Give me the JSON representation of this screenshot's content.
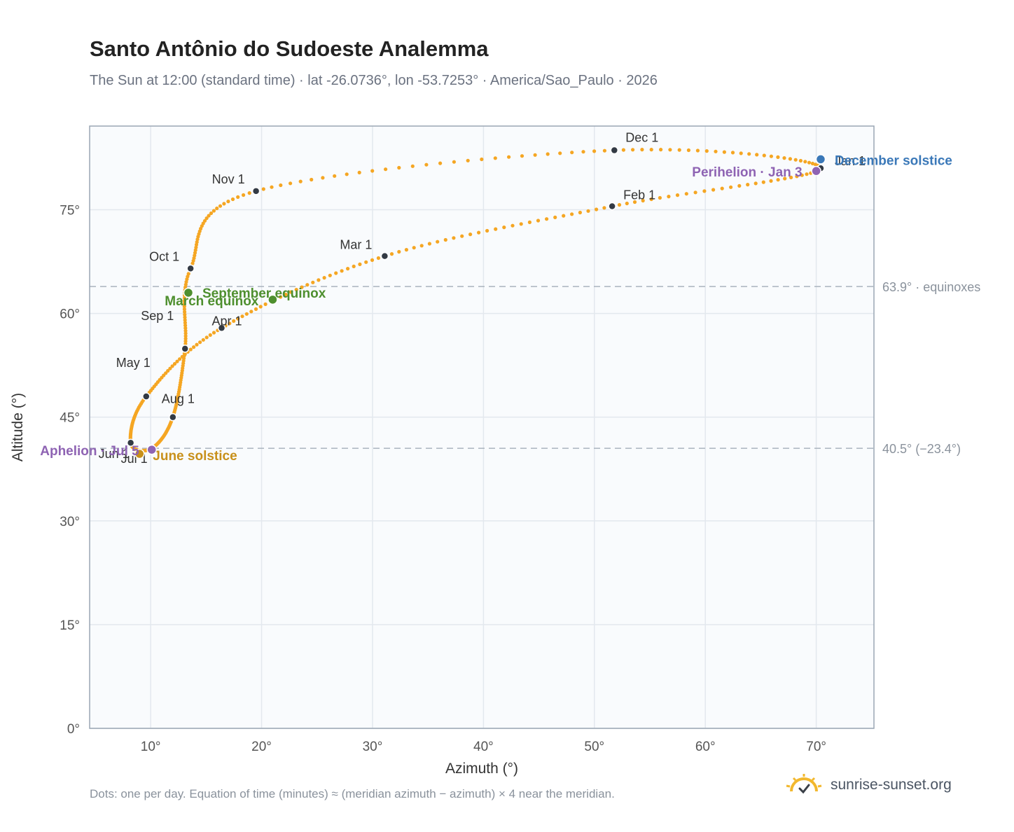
{
  "header": {
    "title": "Santo Antônio do Sudoeste Analemma",
    "subtitle": "The Sun at 12:00 (standard time) · lat -26.0736°, lon -53.7253° · America/Sao_Paulo · 2026"
  },
  "footer": {
    "note": "Dots: one per day. Equation of time (minutes) ≈ (meridian azimuth − azimuth) × 4 near the meridian.",
    "brand": "sunrise-sunset.org"
  },
  "colors": {
    "path": "#f5a623",
    "month_marker": "#333a44",
    "equinox": "#4e8f2e",
    "june_solstice": "#c8901a",
    "december_solstice": "#3a78b8",
    "apsis": "#8e63b3",
    "plot_bg": "#f9fbfd",
    "grid": "#e3e8ee",
    "reference_line": "#aab4be"
  },
  "chart_data": {
    "type": "scatter",
    "xlabel": "Azimuth (°)",
    "ylabel": "Altitude (°)",
    "xlim": [
      4.5,
      75.2
    ],
    "ylim": [
      0,
      87.1
    ],
    "x_ticks": [
      10,
      20,
      30,
      40,
      50,
      60,
      70
    ],
    "x_tick_labels": [
      "10°",
      "20°",
      "30°",
      "40°",
      "50°",
      "60°",
      "70°"
    ],
    "y_ticks": [
      0,
      15,
      30,
      45,
      60,
      75
    ],
    "y_tick_labels": [
      "0°",
      "15°",
      "30°",
      "45°",
      "60°",
      "75°"
    ],
    "grid": true,
    "reference_lines": [
      {
        "y": 63.9,
        "label": "63.9° · equinoxes"
      },
      {
        "y": 40.5,
        "label": "40.5° (−23.4°)"
      }
    ],
    "month_markers": [
      {
        "label": "Jan 1",
        "azimuth": 70.4,
        "altitude": 81.0
      },
      {
        "label": "Feb 1",
        "azimuth": 51.6,
        "altitude": 75.5
      },
      {
        "label": "Mar 1",
        "azimuth": 31.1,
        "altitude": 68.3
      },
      {
        "label": "Apr 1",
        "azimuth": 16.4,
        "altitude": 57.9
      },
      {
        "label": "May 1",
        "azimuth": 9.6,
        "altitude": 48.0
      },
      {
        "label": "Jun 1",
        "azimuth": 8.2,
        "altitude": 41.3
      },
      {
        "label": "Jul 1",
        "azimuth": 10.1,
        "altitude": 40.5
      },
      {
        "label": "Aug 1",
        "azimuth": 12.0,
        "altitude": 45.0
      },
      {
        "label": "Sep 1",
        "azimuth": 13.1,
        "altitude": 54.9
      },
      {
        "label": "Oct 1",
        "azimuth": 13.6,
        "altitude": 66.5
      },
      {
        "label": "Nov 1",
        "azimuth": 19.5,
        "altitude": 77.7
      },
      {
        "label": "Dec 1",
        "azimuth": 51.8,
        "altitude": 83.6
      }
    ],
    "events": [
      {
        "label": "March equinox",
        "azimuth": 21.0,
        "altitude": 62.0,
        "kind": "equinox"
      },
      {
        "label": "September equinox",
        "azimuth": 13.4,
        "altitude": 63.0,
        "kind": "equinox"
      },
      {
        "label": "June solstice",
        "azimuth": 9.0,
        "altitude": 39.7,
        "kind": "june_solstice"
      },
      {
        "label": "December solstice",
        "azimuth": 70.4,
        "altitude": 82.3,
        "kind": "december_solstice"
      },
      {
        "label": "Aphelion · Jul 5",
        "azimuth": 10.1,
        "altitude": 40.3,
        "kind": "apsis"
      },
      {
        "label": "Perihelion · Jan 3",
        "azimuth": 70.0,
        "altitude": 80.6,
        "kind": "apsis"
      }
    ]
  }
}
